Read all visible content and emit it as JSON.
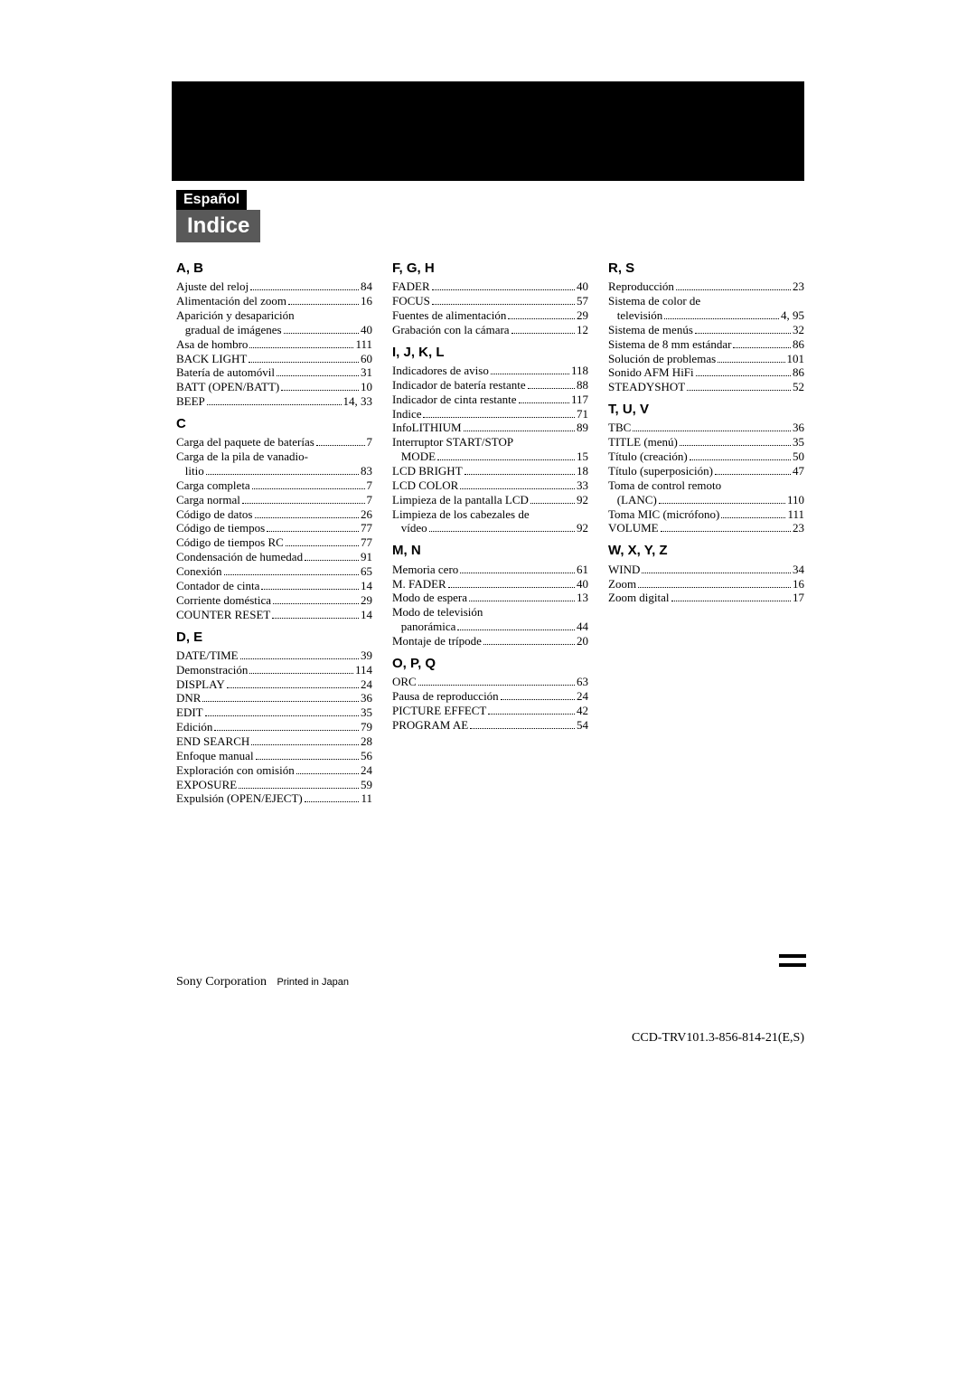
{
  "badge": "Español",
  "title": "Indice",
  "footer": {
    "corp": "Sony Corporation",
    "printed": "Printed in Japan",
    "code": "CCD-TRV101.3-856-814-21(E,S)"
  },
  "columns": [
    {
      "sections": [
        {
          "head": "A, B",
          "entries": [
            {
              "t": "Ajuste del reloj",
              "p": "84"
            },
            {
              "t": "Alimentación del zoom",
              "p": "16"
            },
            {
              "t": "Aparición y desaparición"
            },
            {
              "t": "   gradual de imágenes",
              "p": "40"
            },
            {
              "t": "Asa de hombro",
              "p": "111"
            },
            {
              "t": "BACK LIGHT",
              "p": "60"
            },
            {
              "t": "Batería de automóvil",
              "p": "31"
            },
            {
              "t": "BATT (OPEN/BATT)",
              "p": "10"
            },
            {
              "t": "BEEP",
              "p": "14, 33"
            }
          ]
        },
        {
          "head": "C",
          "entries": [
            {
              "t": "Carga del paquete de baterías",
              "p": "7"
            },
            {
              "t": "Carga de la pila de vanadio-"
            },
            {
              "t": "   litio",
              "p": "83"
            },
            {
              "t": "Carga completa",
              "p": "7"
            },
            {
              "t": "Carga normal",
              "p": "7"
            },
            {
              "t": "Código de datos",
              "p": "26"
            },
            {
              "t": "Código de tiempos",
              "p": "77"
            },
            {
              "t": "Código de tiempos RC",
              "p": "77"
            },
            {
              "t": "Condensación de humedad",
              "p": "91"
            },
            {
              "t": "Conexión",
              "p": "65"
            },
            {
              "t": "Contador de cinta",
              "p": "14"
            },
            {
              "t": "Corriente doméstica",
              "p": "29"
            },
            {
              "t": "COUNTER RESET",
              "p": "14"
            }
          ]
        },
        {
          "head": "D, E",
          "entries": [
            {
              "t": "DATE/TIME",
              "p": "39"
            },
            {
              "t": "Demonstración",
              "p": "114"
            },
            {
              "t": "DISPLAY",
              "p": "24"
            },
            {
              "t": "DNR",
              "p": "36"
            },
            {
              "t": "EDIT",
              "p": "35"
            },
            {
              "t": "Edición",
              "p": "79"
            },
            {
              "t": "END SEARCH",
              "p": "28"
            },
            {
              "t": "Enfoque manual",
              "p": "56"
            },
            {
              "t": "Exploración con omisión",
              "p": "24"
            },
            {
              "t": "EXPOSURE",
              "p": "59"
            },
            {
              "t": "Expulsión (OPEN/EJECT)",
              "p": "11"
            }
          ]
        }
      ]
    },
    {
      "sections": [
        {
          "head": "F, G, H",
          "entries": [
            {
              "t": "FADER",
              "p": "40"
            },
            {
              "t": "FOCUS",
              "p": "57"
            },
            {
              "t": "Fuentes de alimentación",
              "p": "29"
            },
            {
              "t": "Grabación con la cámara",
              "p": "12"
            }
          ]
        },
        {
          "head": "I, J, K, L",
          "entries": [
            {
              "t": "Indicadores de aviso",
              "p": "118"
            },
            {
              "t": "Indicador de batería restante",
              "p": "88"
            },
            {
              "t": "Indicador de cinta restante",
              "p": "117"
            },
            {
              "t": "Indice",
              "p": "71"
            },
            {
              "t": "InfoLITHIUM",
              "p": "89"
            },
            {
              "t": "Interruptor START/STOP"
            },
            {
              "t": "   MODE",
              "p": "15"
            },
            {
              "t": "LCD BRIGHT",
              "p": "18"
            },
            {
              "t": "LCD COLOR",
              "p": "33"
            },
            {
              "t": "Limpieza de la pantalla LCD",
              "p": "92"
            },
            {
              "t": "Limpieza de los cabezales de"
            },
            {
              "t": "   vídeo",
              "p": "92"
            }
          ]
        },
        {
          "head": "M, N",
          "entries": [
            {
              "t": "Memoria cero",
              "p": "61"
            },
            {
              "t": "M. FADER",
              "p": "40"
            },
            {
              "t": "Modo de espera",
              "p": "13"
            },
            {
              "t": "Modo de televisión"
            },
            {
              "t": "   panorámica",
              "p": "44"
            },
            {
              "t": "Montaje de trípode",
              "p": "20"
            }
          ]
        },
        {
          "head": "O, P, Q",
          "entries": [
            {
              "t": "ORC",
              "p": "63"
            },
            {
              "t": "Pausa de reproducción",
              "p": "24"
            },
            {
              "t": "PICTURE EFFECT",
              "p": "42"
            },
            {
              "t": "PROGRAM AE",
              "p": "54"
            }
          ]
        }
      ]
    },
    {
      "sections": [
        {
          "head": "R, S",
          "entries": [
            {
              "t": "Reproducción",
              "p": "23"
            },
            {
              "t": "Sistema de color de"
            },
            {
              "t": "   televisión",
              "p": "4, 95"
            },
            {
              "t": "Sistema de menús",
              "p": "32"
            },
            {
              "t": "Sistema de 8 mm estándar",
              "p": "86"
            },
            {
              "t": "Solución de problemas",
              "p": "101"
            },
            {
              "t": "Sonido AFM HiFi",
              "p": "86"
            },
            {
              "t": "STEADYSHOT",
              "p": "52"
            }
          ]
        },
        {
          "head": "T, U, V",
          "entries": [
            {
              "t": "TBC",
              "p": "36"
            },
            {
              "t": "TITLE (menú)",
              "p": "35"
            },
            {
              "t": "Título (creación)",
              "p": "50"
            },
            {
              "t": "Título (superposición)",
              "p": "47"
            },
            {
              "t": "Toma de control remoto"
            },
            {
              "t": "   (LANC)",
              "p": "110"
            },
            {
              "t": "Toma MIC (micrófono)",
              "p": "111"
            },
            {
              "t": "VOLUME",
              "p": "23"
            }
          ]
        },
        {
          "head": "W, X, Y, Z",
          "entries": [
            {
              "t": "WIND",
              "p": "34"
            },
            {
              "t": "Zoom",
              "p": "16"
            },
            {
              "t": "Zoom digital",
              "p": "17"
            }
          ]
        }
      ]
    }
  ]
}
